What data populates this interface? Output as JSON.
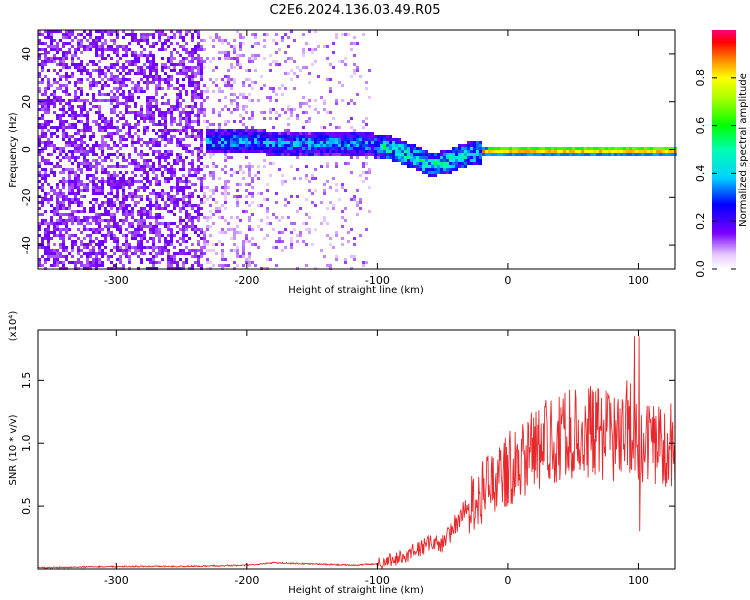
{
  "title": "C2E6.2024.136.03.49.R05",
  "chart_data": [
    {
      "type": "heatmap",
      "name": "spectrogram",
      "xlabel": "Height of straight line (km)",
      "ylabel": "Frequency (Hz)",
      "xlim": [
        -360,
        128
      ],
      "ylim": [
        -50,
        50
      ],
      "xticks": [
        -300,
        -200,
        -100,
        0,
        100
      ],
      "yticks": [
        -40,
        -20,
        0,
        20,
        40
      ],
      "colorbar": {
        "label": "Normalized spectral amplitude",
        "range": [
          0.0,
          1.0
        ],
        "ticks": [
          0.0,
          0.2,
          0.4,
          0.6,
          0.8
        ]
      },
      "signal_track": [
        {
          "x": -230,
          "y": 4
        },
        {
          "x": -200,
          "y": 4
        },
        {
          "x": -170,
          "y": 3
        },
        {
          "x": -140,
          "y": 3
        },
        {
          "x": -110,
          "y": 3
        },
        {
          "x": -90,
          "y": 1
        },
        {
          "x": -75,
          "y": -2
        },
        {
          "x": -60,
          "y": -6
        },
        {
          "x": -45,
          "y": -4
        },
        {
          "x": -30,
          "y": -1
        },
        {
          "x": -15,
          "y": 0
        },
        {
          "x": 0,
          "y": 0
        },
        {
          "x": 50,
          "y": 0
        },
        {
          "x": 100,
          "y": 0
        },
        {
          "x": 128,
          "y": 0
        }
      ]
    },
    {
      "type": "line",
      "name": "snr",
      "xlabel": "Height of straight line (km)",
      "ylabel": "SNR (10 * v/v)",
      "y_multiplier": "(x10⁴)",
      "xlim": [
        -360,
        128
      ],
      "ylim": [
        0,
        1.9
      ],
      "xticks": [
        -300,
        -200,
        -100,
        0,
        100
      ],
      "yticks": [
        0.5,
        1.0,
        1.5
      ],
      "ytick_labels": [
        "0.5",
        "1.0",
        "1.5"
      ],
      "color": "#e8282b",
      "series": [
        {
          "name": "SNR",
          "x": [
            -360,
            -300,
            -250,
            -200,
            -180,
            -150,
            -120,
            -100,
            -80,
            -60,
            -50,
            -40,
            -30,
            -20,
            -10,
            0,
            20,
            40,
            60,
            80,
            95,
            100,
            110,
            128
          ],
          "y": [
            0.01,
            0.02,
            0.02,
            0.03,
            0.05,
            0.04,
            0.03,
            0.04,
            0.1,
            0.2,
            0.2,
            0.35,
            0.5,
            0.6,
            0.7,
            0.8,
            0.95,
            1.05,
            1.1,
            1.05,
            1.15,
            0.9,
            1.0,
            1.0
          ]
        }
      ]
    }
  ]
}
